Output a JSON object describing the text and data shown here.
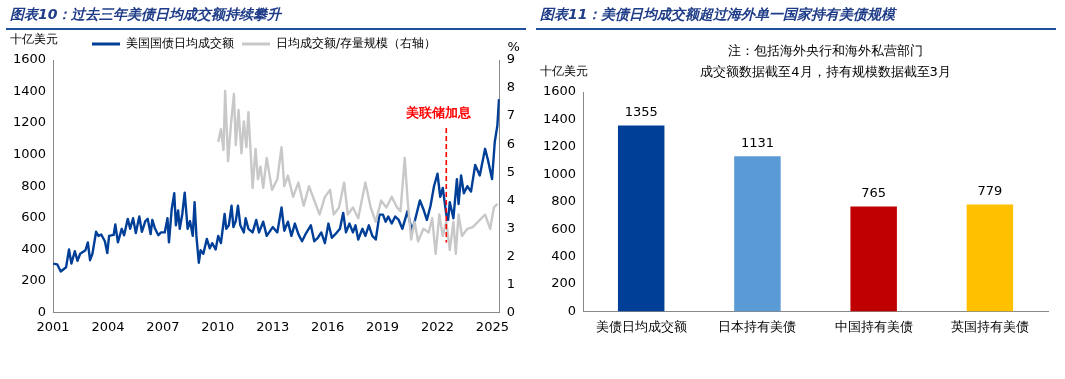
{
  "chart_data": [
    {
      "type": "line",
      "title": "图表10：过去三年美债日均成交额持续攀升",
      "ylabel": "十亿美元",
      "y2label": "%",
      "legend": "top",
      "xlim": [
        2001,
        2025.4
      ],
      "xticks": [
        2001,
        2004,
        2007,
        2010,
        2013,
        2016,
        2019,
        2022,
        2025
      ],
      "ylim": [
        0,
        1600
      ],
      "yticks": [
        0,
        200,
        400,
        600,
        800,
        1000,
        1200,
        1400,
        1600
      ],
      "y2lim": [
        0,
        9
      ],
      "y2ticks": [
        0,
        1,
        2,
        3,
        4,
        5,
        6,
        7,
        8,
        9
      ],
      "series": [
        {
          "name": "美国国债日均成交额",
          "color": "#003f98",
          "x": [
            2001.0,
            2001.23,
            2001.42,
            2001.71,
            2001.87,
            2002.0,
            2002.19,
            2002.33,
            2002.48,
            2002.77,
            2002.9,
            2003.02,
            2003.15,
            2003.35,
            2003.48,
            2003.63,
            2003.83,
            2003.96,
            2004.06,
            2004.31,
            2004.4,
            2004.54,
            2004.75,
            2004.88,
            2005.08,
            2005.21,
            2005.37,
            2005.52,
            2005.71,
            2005.85,
            2006.04,
            2006.17,
            2006.33,
            2006.42,
            2006.56,
            2006.75,
            2006.9,
            2007.1,
            2007.25,
            2007.33,
            2007.48,
            2007.62,
            2007.71,
            2007.83,
            2007.92,
            2008.06,
            2008.19,
            2008.35,
            2008.48,
            2008.63,
            2008.73,
            2008.83,
            2008.96,
            2009.06,
            2009.21,
            2009.4,
            2009.56,
            2009.69,
            2009.88,
            2010.02,
            2010.17,
            2010.37,
            2010.46,
            2010.6,
            2010.75,
            2010.85,
            2010.98,
            2011.1,
            2011.23,
            2011.42,
            2011.52,
            2011.67,
            2011.9,
            2012.1,
            2012.25,
            2012.48,
            2012.67,
            2013.0,
            2013.25,
            2013.48,
            2013.63,
            2013.83,
            2014.02,
            2014.21,
            2014.4,
            2014.6,
            2014.79,
            2015.08,
            2015.27,
            2015.46,
            2015.65,
            2015.85,
            2016.04,
            2016.23,
            2016.42,
            2016.67,
            2016.85,
            2017.0,
            2017.19,
            2017.38,
            2017.52,
            2017.67,
            2017.9,
            2018.06,
            2018.25,
            2018.44,
            2018.63,
            2018.83,
            2019.02,
            2019.17,
            2019.31,
            2019.5,
            2019.69,
            2019.88,
            2020.08,
            2020.36,
            2020.6,
            2020.75,
            2021.04,
            2021.23,
            2021.42,
            2021.62,
            2021.81,
            2022.0,
            2022.15,
            2022.29,
            2022.48,
            2022.58,
            2022.67,
            2022.87,
            2023.06,
            2023.15,
            2023.29,
            2023.44,
            2023.63,
            2023.83,
            2024.06,
            2024.31,
            2024.6,
            2024.75,
            2024.98,
            2025.13,
            2025.27,
            2025.36
          ],
          "values": [
            309,
            304,
            259,
            286,
            399,
            309,
            388,
            327,
            372,
            394,
            444,
            331,
            372,
            511,
            485,
            494,
            451,
            376,
            485,
            491,
            557,
            444,
            530,
            489,
            593,
            530,
            597,
            503,
            608,
            511,
            579,
            593,
            496,
            586,
            534,
            489,
            507,
            507,
            597,
            444,
            654,
            755,
            552,
            647,
            530,
            624,
            759,
            530,
            579,
            485,
            699,
            485,
            315,
            394,
            372,
            466,
            406,
            439,
            399,
            485,
            439,
            624,
            530,
            552,
            676,
            541,
            579,
            676,
            552,
            507,
            597,
            530,
            507,
            586,
            507,
            575,
            485,
            541,
            507,
            665,
            518,
            575,
            485,
            563,
            496,
            451,
            496,
            552,
            451,
            473,
            507,
            439,
            563,
            473,
            496,
            530,
            631,
            507,
            563,
            507,
            552,
            462,
            530,
            485,
            552,
            485,
            462,
            620,
            620,
            575,
            608,
            563,
            608,
            586,
            530,
            642,
            518,
            575,
            710,
            654,
            586,
            676,
            800,
            879,
            732,
            789,
            620,
            586,
            699,
            597,
            845,
            687,
            868,
            755,
            800,
            766,
            935,
            868,
            1037,
            969,
            845,
            1082,
            1183,
            1352
          ]
        },
        {
          "name": "日均成交额/存量规模（右轴）",
          "color": "#c8c8c8",
          "axis": "y2",
          "x": [
            2010.02,
            2010.17,
            2010.31,
            2010.4,
            2010.56,
            2010.71,
            2010.88,
            2010.98,
            2011.13,
            2011.29,
            2011.42,
            2011.56,
            2011.67,
            2011.81,
            2011.9,
            2012.06,
            2012.19,
            2012.33,
            2012.48,
            2012.67,
            2012.96,
            2013.25,
            2013.48,
            2013.63,
            2013.83,
            2014.11,
            2014.4,
            2014.69,
            2014.98,
            2015.27,
            2015.56,
            2015.85,
            2016.13,
            2016.33,
            2016.62,
            2016.9,
            2017.1,
            2017.38,
            2017.67,
            2018.06,
            2018.35,
            2018.63,
            2018.92,
            2019.21,
            2019.5,
            2019.79,
            2019.98,
            2020.21,
            2020.37,
            2020.56,
            2020.75,
            2020.94,
            2021.23,
            2021.52,
            2021.71,
            2021.9,
            2022.1,
            2022.29,
            2022.48,
            2022.67,
            2022.87,
            2023.0,
            2023.15,
            2023.34,
            2023.63,
            2023.92,
            2024.21,
            2024.6,
            2024.88,
            2025.08,
            2025.27
          ],
          "values": [
            6.08,
            6.53,
            5.79,
            7.9,
            5.39,
            6.65,
            7.79,
            5.96,
            7.22,
            5.67,
            6.81,
            5.89,
            7.14,
            5.51,
            4.44,
            5.83,
            4.75,
            5.2,
            4.44,
            5.51,
            4.37,
            4.75,
            5.89,
            4.5,
            4.88,
            4.12,
            4.63,
            3.8,
            4.5,
            3.99,
            3.49,
            4.12,
            4.37,
            3.49,
            3.74,
            4.63,
            3.49,
            3.74,
            3.36,
            4.63,
            3.74,
            3.23,
            3.99,
            3.74,
            4.12,
            3.74,
            3.61,
            5.51,
            3.99,
            2.6,
            3.23,
            2.53,
            2.98,
            2.85,
            3.36,
            2.09,
            3.49,
            2.72,
            3.23,
            2.22,
            3.23,
            2.09,
            3.49,
            2.72,
            2.98,
            3.04,
            3.23,
            3.49,
            2.98,
            3.74,
            3.87
          ]
        }
      ],
      "ref_lines": [
        {
          "axis": "x",
          "value": 2022.48,
          "label": "美联储加息",
          "color": "#ff0000",
          "line_style": "dashed"
        }
      ]
    },
    {
      "type": "bar",
      "title": "图表11：美债日均成交额超过海外单一国家持有美债规模",
      "ylabel": "十亿美元",
      "categories": [
        "美债日均成交额",
        "日本持有美债",
        "中国持有美债",
        "英国持有美债"
      ],
      "values": [
        1355,
        1131,
        765,
        779
      ],
      "colors": [
        "#003f98",
        "#5b9bd5",
        "#c00000",
        "#ffc000"
      ],
      "data_labels": true,
      "ylim": [
        0,
        1600
      ],
      "yticks": [
        0,
        200,
        400,
        600,
        800,
        1000,
        1200,
        1400,
        1600
      ],
      "annotations": [
        "注：包括海外央行和海外私营部门",
        "成交额数据截至4月，持有规模数据截至3月"
      ]
    }
  ]
}
